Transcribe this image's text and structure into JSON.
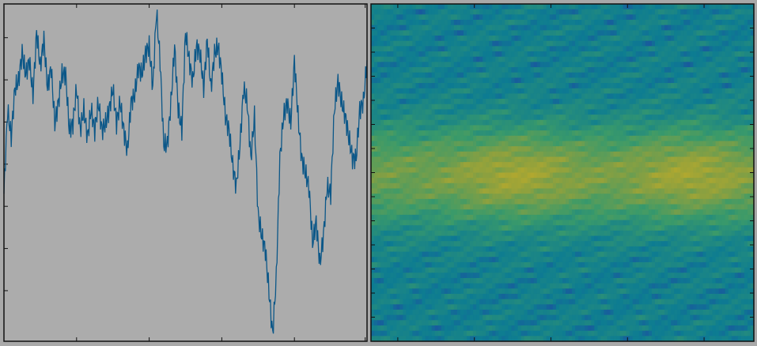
{
  "chart_data": [
    {
      "type": "line",
      "title": "",
      "xlabel": "",
      "ylabel": "",
      "grid": false,
      "xlim": [
        0,
        500
      ],
      "ylim": [
        -1.2,
        1.2
      ],
      "background": "#acacac",
      "series": [
        {
          "color": "#0b5788",
          "x": [
            0,
            5,
            10,
            15,
            20,
            25,
            30,
            35,
            40,
            45,
            50,
            55,
            60,
            65,
            70,
            75,
            80,
            85,
            90,
            95,
            100,
            105,
            110,
            115,
            120,
            125,
            130,
            135,
            140,
            145,
            150,
            155,
            160,
            165,
            170,
            175,
            180,
            185,
            190,
            195,
            200,
            205,
            210,
            215,
            220,
            225,
            230,
            235,
            240,
            245,
            250,
            255,
            260,
            265,
            270,
            275,
            280,
            285,
            290,
            295,
            300,
            305,
            310,
            315,
            320,
            325,
            330,
            335,
            340,
            345,
            350,
            355,
            360,
            365,
            370,
            375,
            380,
            385,
            390,
            395,
            400,
            405,
            410,
            415,
            420,
            425,
            430,
            435,
            440,
            445,
            450,
            455,
            460,
            465,
            470,
            475,
            480,
            485,
            490,
            495,
            500
          ],
          "values": [
            -0.15,
            0.45,
            0.25,
            0.6,
            0.65,
            0.85,
            0.7,
            0.8,
            0.55,
            1.0,
            0.75,
            0.95,
            0.6,
            0.75,
            0.35,
            0.5,
            0.7,
            0.7,
            0.3,
            0.35,
            0.6,
            0.3,
            0.45,
            0.25,
            0.45,
            0.3,
            0.5,
            0.3,
            0.35,
            0.45,
            0.6,
            0.35,
            0.5,
            0.3,
            0.15,
            0.5,
            0.55,
            0.75,
            0.7,
            0.85,
            0.9,
            0.6,
            1.15,
            0.8,
            0.2,
            0.2,
            0.5,
            0.9,
            0.45,
            0.3,
            1.0,
            0.8,
            0.65,
            0.9,
            0.85,
            0.6,
            0.95,
            0.6,
            0.85,
            0.9,
            0.7,
            0.4,
            0.3,
            0.05,
            -0.1,
            0.2,
            0.6,
            0.5,
            0.1,
            0.4,
            -0.3,
            -0.45,
            -0.55,
            -0.85,
            -1.15,
            -0.75,
            0.1,
            0.4,
            0.5,
            0.35,
            0.8,
            0.4,
            0.1,
            0.0,
            -0.1,
            -0.5,
            -0.35,
            -0.65,
            -0.45,
            -0.1,
            -0.15,
            0.45,
            0.65,
            0.5,
            0.4,
            0.25,
            0.1,
            0.1,
            0.45,
            0.5,
            0.8
          ]
        }
      ]
    },
    {
      "type": "heatmap",
      "title": "",
      "xlabel": "",
      "ylabel": "",
      "grid": false,
      "colormap": [
        "#2b23b0",
        "#0d7c92",
        "#3a9a6a",
        "#8aa040",
        "#c8ad25"
      ],
      "rows": 64,
      "cols": 120,
      "band_center_row": 32,
      "peak_cols": [
        45,
        100
      ]
    }
  ]
}
